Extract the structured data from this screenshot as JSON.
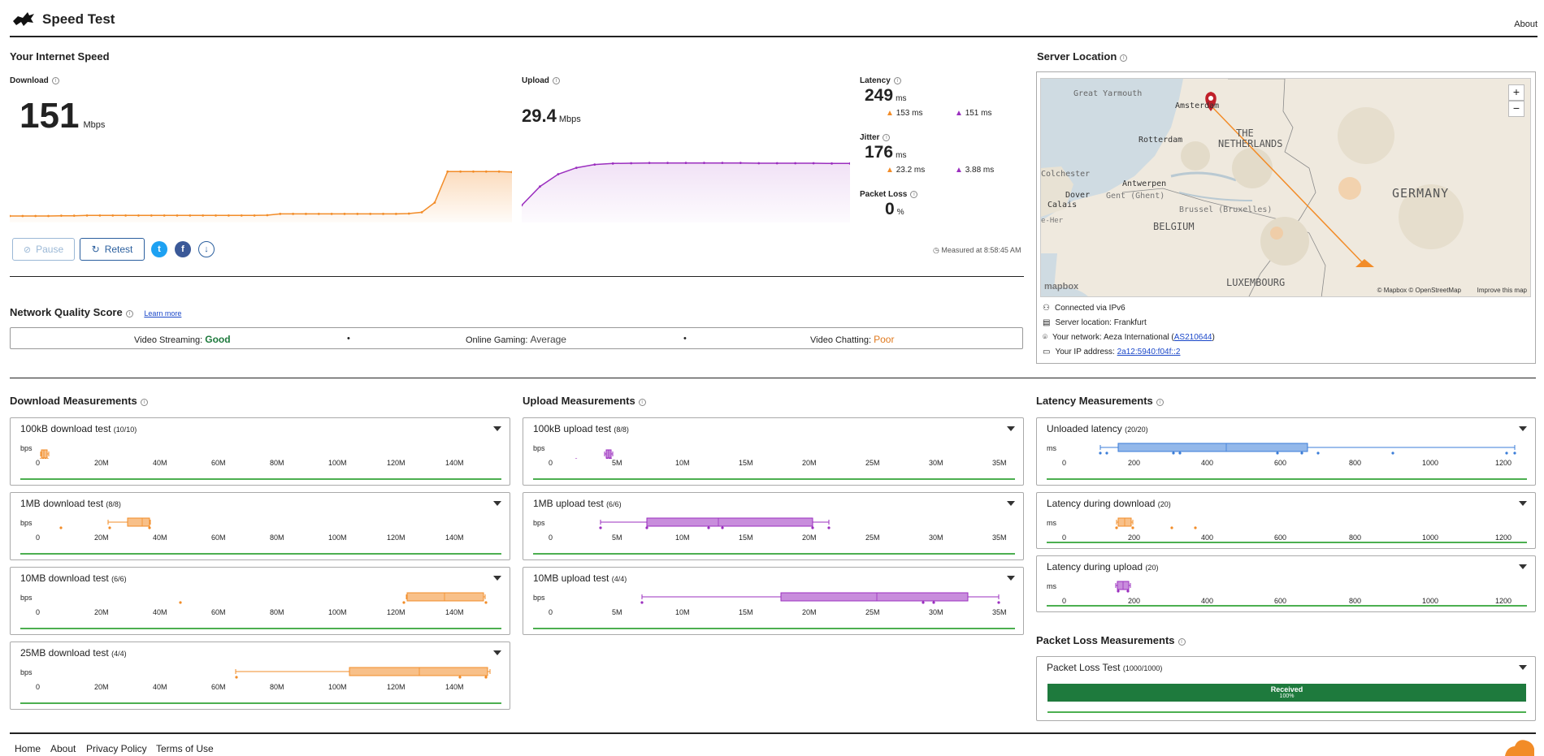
{
  "header": {
    "title": "Speed Test",
    "about": "About"
  },
  "speed": {
    "heading": "Your Internet Speed",
    "download": {
      "label": "Download",
      "value": "151",
      "unit": "Mbps"
    },
    "upload": {
      "label": "Upload",
      "value": "29.4",
      "unit": "Mbps"
    },
    "latency": {
      "label": "Latency",
      "value": "249",
      "unit": "ms",
      "down": "153 ms",
      "up": "151 ms"
    },
    "jitter": {
      "label": "Jitter",
      "value": "176",
      "unit": "ms",
      "down": "23.2 ms",
      "up": "3.88 ms"
    },
    "packet_loss": {
      "label": "Packet Loss",
      "value": "0",
      "unit": "%"
    },
    "pause": "Pause",
    "retest": "Retest",
    "measured": "Measured at 8:58:45 AM"
  },
  "download_curve": [
    0,
    0,
    0,
    0,
    0.5,
    0.5,
    1,
    1,
    1,
    1,
    1,
    1,
    1,
    1,
    1,
    1,
    1,
    1,
    1,
    1,
    1.5,
    4,
    4,
    4,
    4,
    4,
    4,
    4,
    4,
    4,
    4,
    4.5,
    7,
    25,
    83,
    83,
    83,
    83,
    83,
    82
  ],
  "upload_curve": [
    20,
    55,
    78,
    90,
    96,
    98,
    98.5,
    99,
    99,
    99,
    99,
    99,
    99,
    98.5,
    98.5,
    98.5,
    98.5,
    98,
    98
  ],
  "nqs": {
    "heading": "Network Quality Score",
    "learn": "Learn more",
    "streaming": {
      "label": "Video Streaming:",
      "value": "Good"
    },
    "gaming": {
      "label": "Online Gaming:",
      "value": "Average"
    },
    "chatting": {
      "label": "Video Chatting:",
      "value": "Poor"
    },
    "sep": "•"
  },
  "server": {
    "heading": "Server Location",
    "connected": "Connected via IPv6",
    "location": "Server location: Frankfurt",
    "network_prefix": "Your network: Aeza International (",
    "network_link": "AS210644",
    "network_suffix": ")",
    "ip_prefix": "Your IP address: ",
    "ip_link": "2a12:5940:f04f::2"
  },
  "map": {
    "labels": [
      "Great Yarmouth",
      "Amsterdam",
      "THE",
      "NETHERLANDS",
      "Rotterdam",
      "Colchester",
      "Dover",
      "Calais",
      "Antwerpen",
      "Gent (Ghent)",
      "Brussel (Bruxelles)",
      "BELGIUM",
      "GERMANY",
      "LUXEMBOURG",
      "e-Her"
    ],
    "attribution": "© Mapbox © OpenStreetMap",
    "improve": "Improve this map",
    "brand": "mapbox",
    "zoom_in": "+",
    "zoom_out": "−"
  },
  "download_meas": {
    "heading": "Download Measurements",
    "ticks": [
      "0",
      "20M",
      "40M",
      "60M",
      "80M",
      "100M",
      "120M",
      "140M"
    ],
    "unit": "bps",
    "tests": [
      {
        "name": "100kB download test",
        "count": "(10/10)"
      },
      {
        "name": "1MB download test",
        "count": "(8/8)"
      },
      {
        "name": "10MB download test",
        "count": "(6/6)"
      },
      {
        "name": "25MB download test",
        "count": "(4/4)"
      }
    ]
  },
  "upload_meas": {
    "heading": "Upload Measurements",
    "ticks": [
      "0",
      "5M",
      "10M",
      "15M",
      "20M",
      "25M",
      "30M",
      "35M"
    ],
    "unit": "bps",
    "tests": [
      {
        "name": "100kB upload test",
        "count": "(8/8)"
      },
      {
        "name": "1MB upload test",
        "count": "(6/6)"
      },
      {
        "name": "10MB upload test",
        "count": "(4/4)"
      }
    ]
  },
  "latency_meas": {
    "heading": "Latency Measurements",
    "ticks": [
      "200",
      "400",
      "600",
      "800",
      "1000",
      "1200"
    ],
    "zero": "0",
    "unit": "ms",
    "tests": [
      {
        "name": "Unloaded latency",
        "count": "(20/20)"
      },
      {
        "name": "Latency during download",
        "count": "(20)"
      },
      {
        "name": "Latency during upload",
        "count": "(20)"
      }
    ]
  },
  "packet_meas": {
    "heading": "Packet Loss Measurements",
    "test": {
      "name": "Packet Loss Test",
      "count": "(1000/1000)"
    },
    "bar_label": "Received",
    "bar_pct": "100%",
    "received_fraction": 1.0
  },
  "footer": {
    "home": "Home",
    "about": "About",
    "privacy": "Privacy Policy",
    "terms": "Terms of Use"
  },
  "colors": {
    "orange": "#f28c28",
    "purple": "#9b2fbf",
    "blue": "#3b7dd8",
    "green": "#1e7a3d",
    "poor": "#e07a1f",
    "link": "#1a47c9"
  }
}
